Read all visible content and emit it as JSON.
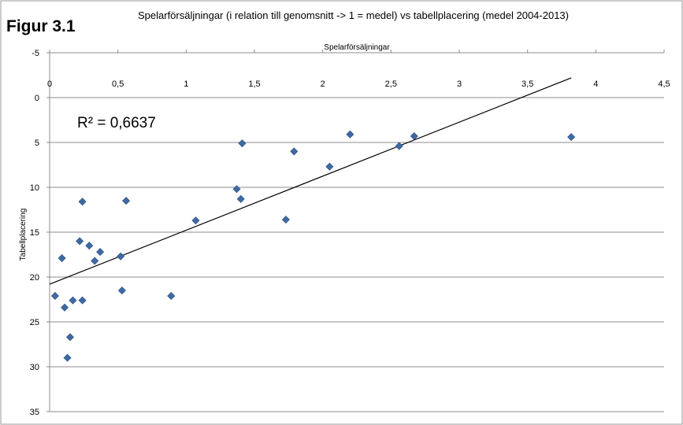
{
  "figure_label": "Figur 3.1",
  "chart_data": {
    "type": "scatter",
    "title": "Spelarförsäljningar (i relation till genomsnitt -> 1 = medel) vs tabellplacering (medel 2004-2013)",
    "xlabel": "Spelarförsäljningar",
    "ylabel": "Tabellplacering",
    "xlim": [
      0,
      4.5
    ],
    "ylim": [
      -5,
      35
    ],
    "y_inverted": true,
    "x_axis_position": "top",
    "grid": "horizontal",
    "x_ticks": [
      "0",
      "0,5",
      "1",
      "1,5",
      "2",
      "2,5",
      "3",
      "3,5",
      "4",
      "4,5"
    ],
    "y_ticks": [
      "-5",
      "0",
      "5",
      "10",
      "15",
      "20",
      "25",
      "30",
      "35"
    ],
    "marker_color": "#3e6aa3",
    "trendline": {
      "x": [
        0,
        3.82
      ],
      "y": [
        20.8,
        -2.2
      ],
      "r2_label": "R² = 0,6637"
    },
    "points": [
      {
        "x": 0.04,
        "y": 22.1
      },
      {
        "x": 0.09,
        "y": 17.9
      },
      {
        "x": 0.11,
        "y": 23.4
      },
      {
        "x": 0.13,
        "y": 29.0
      },
      {
        "x": 0.15,
        "y": 26.7
      },
      {
        "x": 0.17,
        "y": 22.6
      },
      {
        "x": 0.22,
        "y": 16.0
      },
      {
        "x": 0.24,
        "y": 22.6
      },
      {
        "x": 0.24,
        "y": 11.6
      },
      {
        "x": 0.29,
        "y": 16.5
      },
      {
        "x": 0.33,
        "y": 18.2
      },
      {
        "x": 0.37,
        "y": 17.2
      },
      {
        "x": 0.52,
        "y": 17.7
      },
      {
        "x": 0.53,
        "y": 21.5
      },
      {
        "x": 0.56,
        "y": 11.5
      },
      {
        "x": 0.89,
        "y": 22.1
      },
      {
        "x": 1.07,
        "y": 13.7
      },
      {
        "x": 1.37,
        "y": 10.2
      },
      {
        "x": 1.4,
        "y": 11.3
      },
      {
        "x": 1.41,
        "y": 5.1
      },
      {
        "x": 1.73,
        "y": 13.6
      },
      {
        "x": 1.79,
        "y": 6.0
      },
      {
        "x": 2.05,
        "y": 7.7
      },
      {
        "x": 2.2,
        "y": 4.1
      },
      {
        "x": 2.56,
        "y": 5.4
      },
      {
        "x": 2.67,
        "y": 4.3
      },
      {
        "x": 3.82,
        "y": 4.4
      }
    ]
  }
}
